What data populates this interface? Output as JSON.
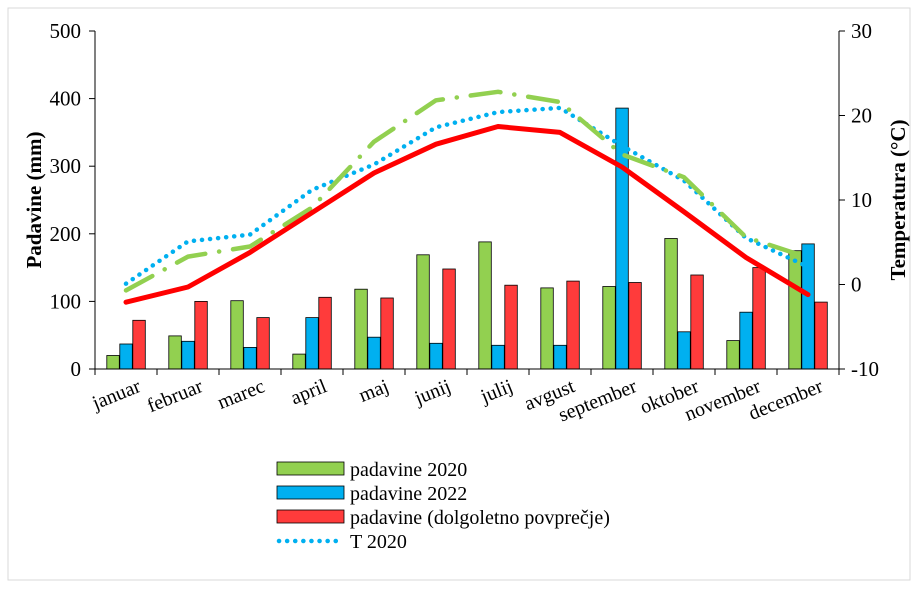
{
  "chart_data": {
    "type": "bar",
    "categories": [
      "januar",
      "februar",
      "marec",
      "april",
      "maj",
      "junij",
      "julij",
      "avgust",
      "september",
      "oktober",
      "november",
      "december"
    ],
    "xlabel": "",
    "ylabel": "Padavine (mm)",
    "y2label": "Temperatura (°C)",
    "ylim": [
      0,
      500
    ],
    "y2lim": [
      -10,
      30
    ],
    "yticks": [
      "0",
      "100",
      "200",
      "300",
      "400",
      "500"
    ],
    "y2ticks": [
      "-10",
      "0",
      "10",
      "20",
      "30"
    ],
    "grid": false,
    "legend_position": "bottom",
    "series": [
      {
        "name": "padavine 2020",
        "type": "bar",
        "axis": "left",
        "color": "#92d050",
        "values": [
          20,
          49,
          101,
          22,
          118,
          169,
          188,
          120,
          122,
          193,
          42,
          175
        ]
      },
      {
        "name": "padavine 2022",
        "type": "bar",
        "axis": "left",
        "color": "#00b0f0",
        "values": [
          37,
          41,
          32,
          76,
          47,
          38,
          35,
          35,
          386,
          55,
          84,
          185
        ]
      },
      {
        "name": "padavine (dolgoletno povprečje)",
        "type": "bar",
        "axis": "left",
        "color": "#ff3b3b",
        "values": [
          72,
          100,
          76,
          106,
          105,
          148,
          124,
          130,
          128,
          139,
          150,
          99
        ]
      },
      {
        "name": "T 2020",
        "type": "line",
        "axis": "right",
        "color": "#00b0f0",
        "style": "dotted",
        "values": [
          0.1,
          5.1,
          5.9,
          11.2,
          14.2,
          18.6,
          20.4,
          20.9,
          16.4,
          12.3,
          5.5,
          2.1
        ]
      },
      {
        "name": "",
        "type": "line",
        "axis": "right",
        "color": "#92d050",
        "style": "dash-dot",
        "values": [
          -0.7,
          3.3,
          4.5,
          9.1,
          16.9,
          21.8,
          22.8,
          21.6,
          15.4,
          12.7,
          5.6,
          3.2
        ]
      },
      {
        "name": "",
        "type": "line",
        "axis": "right",
        "color": "#ff0000",
        "style": "solid",
        "values": [
          -2.1,
          -0.3,
          3.8,
          8.5,
          13.2,
          16.6,
          18.7,
          18.0,
          13.9,
          8.6,
          3.2,
          -1.2
        ]
      }
    ]
  }
}
